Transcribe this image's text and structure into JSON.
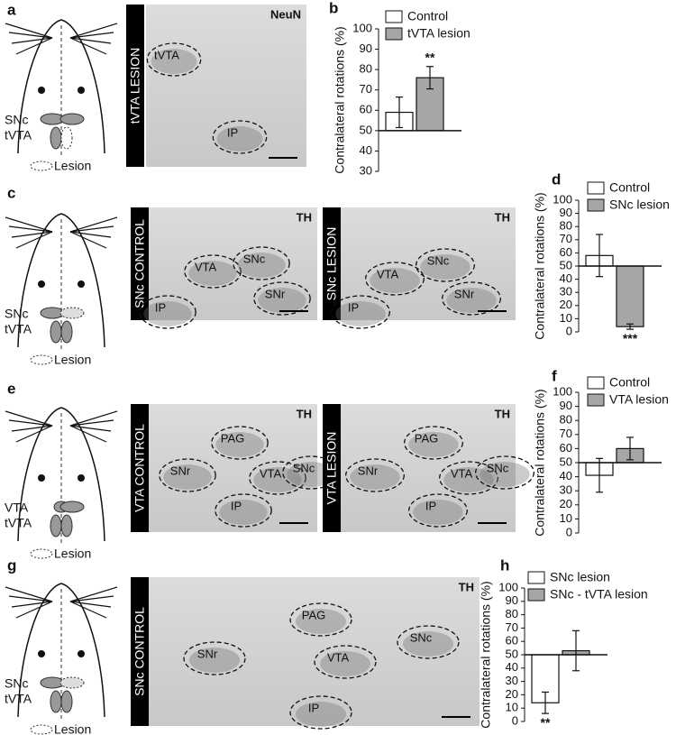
{
  "figure": {
    "a": {
      "letter": "a",
      "schematic": [
        "SNc",
        "tVTA",
        "Lesion"
      ],
      "images": [
        {
          "side": "tVTA LESION",
          "stain": "NeuN",
          "regions": [
            "tVTA",
            "IP"
          ]
        }
      ]
    },
    "c": {
      "letter": "c",
      "schematic": [
        "SNc",
        "tVTA",
        "Lesion"
      ],
      "images": [
        {
          "side": "SNc CONTROL",
          "stain": "TH",
          "regions": [
            "VTA",
            "SNc",
            "SNr",
            "IP"
          ]
        },
        {
          "side": "SNc LESION",
          "stain": "TH",
          "regions": [
            "VTA",
            "SNc",
            "SNr",
            "IP"
          ]
        }
      ]
    },
    "e": {
      "letter": "e",
      "schematic": [
        "VTA",
        "tVTA",
        "Lesion"
      ],
      "images": [
        {
          "side": "VTA CONTROL",
          "stain": "TH",
          "regions": [
            "PAG",
            "SNr",
            "VTA",
            "SNc",
            "IP"
          ]
        },
        {
          "side": "VTA LESION",
          "stain": "TH",
          "regions": [
            "PAG",
            "SNr",
            "VTA",
            "SNc",
            "IP"
          ]
        }
      ]
    },
    "g": {
      "letter": "g",
      "schematic": [
        "SNc",
        "tVTA",
        "Lesion"
      ],
      "images": [
        {
          "side": "SNc CONTROL",
          "stain": "TH",
          "regions": [
            "PAG",
            "SNr",
            "VTA",
            "SNc",
            "IP"
          ]
        }
      ]
    }
  },
  "chart_data": [
    {
      "type": "bar",
      "panel": "b",
      "y_label": "Contralateral rotations (%)",
      "ylim": [
        30,
        100
      ],
      "yticks": [
        30,
        40,
        50,
        60,
        70,
        80,
        90,
        100
      ],
      "baseline": 50,
      "annotation": "**",
      "series": [
        {
          "name": "Control",
          "color": "#ffffff",
          "values": [
            59
          ],
          "errors": [
            7.5
          ]
        },
        {
          "name": "tVTA lesion",
          "color": "#a6a6a6",
          "values": [
            76
          ],
          "errors": [
            5.5
          ]
        }
      ]
    },
    {
      "type": "bar",
      "panel": "d",
      "y_label": "Contralateral rotations (%)",
      "ylim": [
        0,
        100
      ],
      "yticks": [
        0,
        10,
        20,
        30,
        40,
        50,
        60,
        70,
        80,
        90,
        100
      ],
      "baseline": 50,
      "annotation": "***",
      "series": [
        {
          "name": "Control",
          "color": "#ffffff",
          "values": [
            58
          ],
          "errors": [
            16
          ]
        },
        {
          "name": "SNc lesion",
          "color": "#a6a6a6",
          "values": [
            4
          ],
          "errors": [
            2
          ]
        }
      ]
    },
    {
      "type": "bar",
      "panel": "f",
      "y_label": "Contralateral rotations (%)",
      "ylim": [
        0,
        100
      ],
      "yticks": [
        0,
        10,
        20,
        30,
        40,
        50,
        60,
        70,
        80,
        90,
        100
      ],
      "baseline": 50,
      "series": [
        {
          "name": "Control",
          "color": "#ffffff",
          "values": [
            41
          ],
          "errors": [
            12
          ]
        },
        {
          "name": "VTA lesion",
          "color": "#a6a6a6",
          "values": [
            60
          ],
          "errors": [
            8
          ]
        }
      ]
    },
    {
      "type": "bar",
      "panel": "h",
      "y_label": "Contralateral rotations (%)",
      "ylim": [
        0,
        100
      ],
      "yticks": [
        0,
        10,
        20,
        30,
        40,
        50,
        60,
        70,
        80,
        90,
        100
      ],
      "baseline": 50,
      "annotation": "**",
      "series": [
        {
          "name": "SNc lesion",
          "color": "#ffffff",
          "values": [
            14
          ],
          "errors": [
            8
          ]
        },
        {
          "name": "SNc - tVTA lesion",
          "color": "#a6a6a6",
          "values": [
            53
          ],
          "errors": [
            15
          ]
        }
      ]
    }
  ]
}
